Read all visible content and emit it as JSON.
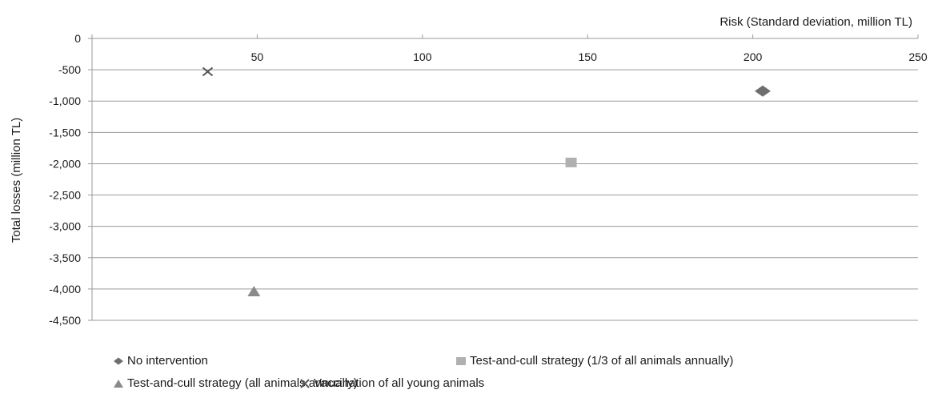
{
  "chart_data": {
    "type": "scatter",
    "title": "",
    "xlabel": "Risk (Standard deviation, million TL)",
    "ylabel": "Total losses (million TL)",
    "xlim": [
      0,
      250
    ],
    "ylim": [
      -4500,
      0
    ],
    "x_ticks": [
      "50",
      "100",
      "150",
      "200",
      "250"
    ],
    "x_tick_values": [
      50,
      100,
      150,
      200,
      250
    ],
    "y_ticks": [
      "0",
      "-500",
      "-1,000",
      "-1,500",
      "-2,000",
      "-2,500",
      "-3,000",
      "-3,500",
      "-4,000",
      "-4,500"
    ],
    "y_tick_values": [
      0,
      -500,
      -1000,
      -1500,
      -2000,
      -2500,
      -3000,
      -3500,
      -4000,
      -4500
    ],
    "x_axis_position": "top",
    "grid": "horizontal",
    "legend_position": "bottom",
    "series": [
      {
        "name": "No intervention",
        "marker": "diamond",
        "color": "#6e6e6e",
        "x": 203,
        "y": -840
      },
      {
        "name": "Test-and-cull strategy (1/3 of all animals annually)",
        "marker": "square",
        "color": "#b0b0b0",
        "x": 145,
        "y": -1980
      },
      {
        "name": "Test-and-cull strategy (all animals annually)",
        "marker": "triangle",
        "color": "#8a8a8a",
        "x": 49,
        "y": -4040
      },
      {
        "name": "Vaccination of all young animals",
        "marker": "x",
        "color": "#555555",
        "x": 35,
        "y": -530
      }
    ]
  }
}
